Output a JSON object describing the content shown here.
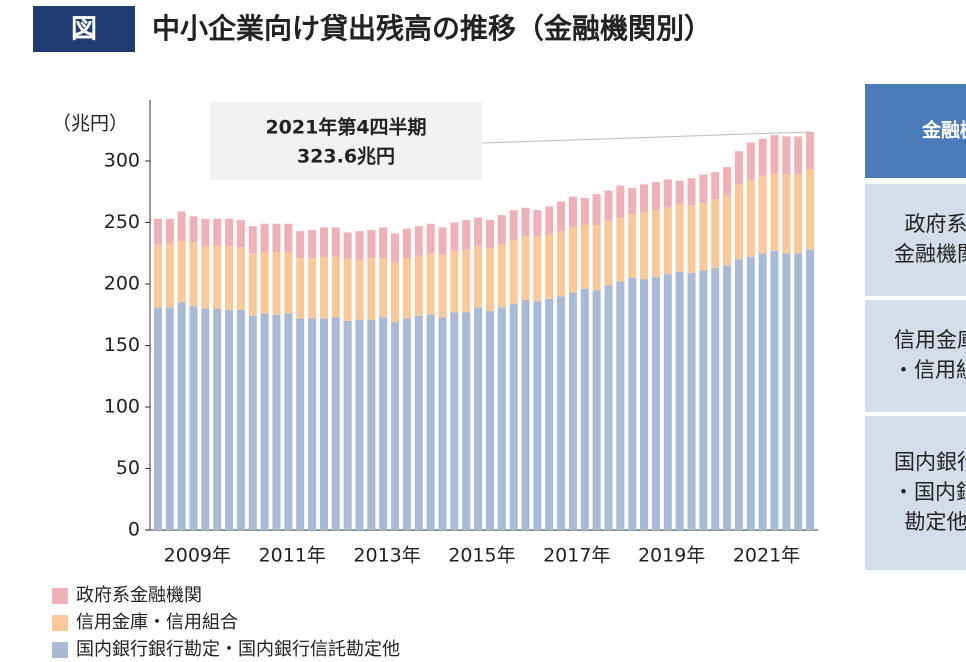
{
  "header": {
    "badge": "図",
    "title": "中小企業向け貸出残高の推移（金融機関別）"
  },
  "chart_data": {
    "type": "stacked-bar",
    "y_label": "（兆円）",
    "annotation": [
      "2021年第4四半期",
      "323.6兆円"
    ],
    "categories": [
      null,
      null,
      null,
      null,
      "2009年",
      null,
      null,
      null,
      null,
      null,
      null,
      null,
      "2011年",
      null,
      null,
      null,
      null,
      null,
      null,
      null,
      "2013年",
      null,
      null,
      null,
      null,
      null,
      null,
      null,
      "2015年",
      null,
      null,
      null,
      null,
      null,
      null,
      null,
      "2017年",
      null,
      null,
      null,
      null,
      null,
      null,
      null,
      "2019年",
      null,
      null,
      null,
      null,
      null,
      null,
      null,
      "2021年",
      null,
      null,
      null
    ],
    "series": [
      {
        "name": "国内銀行銀行勘定・国内銀行信託勘定他",
        "color": "#a9bbd4",
        "values": [
          181,
          181,
          185,
          182,
          180,
          180,
          179,
          179,
          174,
          176,
          175,
          176,
          172,
          172,
          172,
          173,
          170,
          171,
          171,
          173,
          169,
          172,
          174,
          175,
          173,
          177,
          177,
          181,
          178,
          181,
          184,
          187,
          186,
          188,
          190,
          193,
          196,
          195,
          199,
          202,
          205,
          204,
          206,
          208,
          210,
          209,
          211,
          213,
          215,
          220,
          222,
          225,
          227,
          225,
          225,
          228
        ]
      },
      {
        "name": "信用金庫・信用組合",
        "color": "#f8c99a",
        "values": [
          51,
          52,
          50,
          52,
          51,
          51,
          52,
          51,
          51,
          50,
          51,
          50,
          49,
          49,
          50,
          49,
          50,
          49,
          50,
          48,
          49,
          49,
          49,
          50,
          51,
          50,
          51,
          50,
          51,
          51,
          52,
          52,
          53,
          52,
          53,
          53,
          52,
          53,
          52,
          52,
          52,
          54,
          54,
          54,
          55,
          55,
          55,
          56,
          57,
          61,
          63,
          63,
          63,
          64,
          64,
          65
        ]
      },
      {
        "name": "政府系金融機関",
        "color": "#eeb1b7",
        "values": [
          21,
          20,
          24,
          21,
          22,
          22,
          22,
          22,
          22,
          23,
          23,
          23,
          22,
          23,
          24,
          24,
          22,
          23,
          23,
          25,
          23,
          24,
          24,
          24,
          22,
          23,
          24,
          23,
          23,
          24,
          24,
          23,
          21,
          23,
          24,
          25,
          22,
          25,
          25,
          26,
          21,
          23,
          23,
          23,
          19,
          22,
          23,
          22,
          23,
          27,
          30,
          30,
          31,
          31,
          31,
          30.6
        ]
      }
    ],
    "ylim": [
      0,
      350
    ],
    "yticks": [
      0,
      50,
      100,
      150,
      200,
      250,
      300
    ]
  },
  "table": {
    "header": "金融機関",
    "rows": [
      [
        "政府系",
        "金融機関"
      ],
      [
        "信用金庫",
        "・信用組合"
      ],
      [
        "国内銀行",
        "・国内銀行信託",
        "勘定他"
      ]
    ]
  }
}
